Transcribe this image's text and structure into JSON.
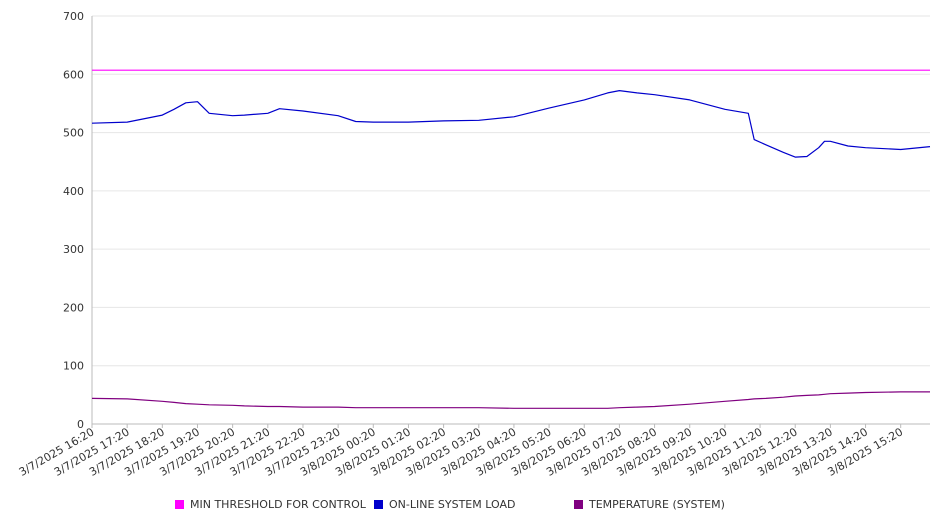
{
  "chart_data": {
    "type": "line",
    "title": "",
    "xlabel": "",
    "ylabel": "",
    "ylim": [
      0,
      700
    ],
    "yticks": [
      0,
      100,
      200,
      300,
      400,
      500,
      600,
      700
    ],
    "grid": true,
    "legend_position": "bottom",
    "x_tick_labels": [
      "3/7/2025 16:20",
      "3/7/2025 17:20",
      "3/7/2025 18:20",
      "3/7/2025 19:20",
      "3/7/2025 20:20",
      "3/7/2025 21:20",
      "3/7/2025 22:20",
      "3/7/2025 23:20",
      "3/8/2025 00:20",
      "3/8/2025 01:20",
      "3/8/2025 02:20",
      "3/8/2025 03:20",
      "3/8/2025 04:20",
      "3/8/2025 05:20",
      "3/8/2025 06:20",
      "3/8/2025 07:20",
      "3/8/2025 08:20",
      "3/8/2025 09:20",
      "3/8/2025 10:20",
      "3/8/2025 11:20",
      "3/8/2025 12:20",
      "3/8/2025 13:20",
      "3/8/2025 14:20",
      "3/8/2025 15:20"
    ],
    "x_times": [
      "3/7/2025 16:20",
      "3/7/2025 17:20",
      "3/7/2025 18:20",
      "3/7/2025 18:40",
      "3/7/2025 19:00",
      "3/7/2025 19:20",
      "3/7/2025 19:40",
      "3/7/2025 20:20",
      "3/7/2025 20:40",
      "3/7/2025 21:20",
      "3/7/2025 21:40",
      "3/7/2025 22:20",
      "3/7/2025 23:20",
      "3/7/2025 23:50",
      "3/8/2025 00:20",
      "3/8/2025 01:20",
      "3/8/2025 02:20",
      "3/8/2025 03:20",
      "3/8/2025 04:20",
      "3/8/2025 05:20",
      "3/8/2025 06:20",
      "3/8/2025 07:00",
      "3/8/2025 07:20",
      "3/8/2025 07:50",
      "3/8/2025 08:20",
      "3/8/2025 09:20",
      "3/8/2025 10:20",
      "3/8/2025 11:00",
      "3/8/2025 11:10",
      "3/8/2025 11:30",
      "3/8/2025 12:00",
      "3/8/2025 12:20",
      "3/8/2025 12:40",
      "3/8/2025 13:00",
      "3/8/2025 13:10",
      "3/8/2025 13:20",
      "3/8/2025 13:50",
      "3/8/2025 14:20",
      "3/8/2025 15:20",
      "3/8/2025 16:10"
    ],
    "series": [
      {
        "name": "MIN THRESHOLD FOR CONTROL",
        "color": "#ff00ff",
        "values": [
          607,
          607,
          607,
          607,
          607,
          607,
          607,
          607,
          607,
          607,
          607,
          607,
          607,
          607,
          607,
          607,
          607,
          607,
          607,
          607,
          607,
          607,
          607,
          607,
          607,
          607,
          607,
          607,
          607,
          607,
          607,
          607,
          607,
          607,
          607,
          607,
          607,
          607,
          607,
          607
        ]
      },
      {
        "name": "ON-LINE SYSTEM LOAD",
        "color": "#0000cc",
        "values": [
          516,
          518,
          530,
          540,
          551,
          553,
          533,
          529,
          530,
          533,
          541,
          537,
          529,
          519,
          518,
          518,
          520,
          521,
          527,
          542,
          556,
          568,
          572,
          568,
          565,
          556,
          540,
          533,
          488,
          479,
          466,
          458,
          459,
          474,
          485,
          485,
          477,
          474,
          471,
          476
        ]
      },
      {
        "name": "TEMPERATURE (SYSTEM)",
        "color": "#800080",
        "values": [
          44,
          43,
          39,
          37,
          35,
          34,
          33,
          32,
          31,
          30,
          30,
          29,
          29,
          28,
          28,
          28,
          28,
          28,
          27,
          27,
          27,
          27,
          28,
          29,
          30,
          34,
          39,
          42,
          43,
          44,
          46,
          48,
          49,
          50,
          51,
          52,
          53,
          54,
          55,
          55
        ]
      }
    ]
  }
}
